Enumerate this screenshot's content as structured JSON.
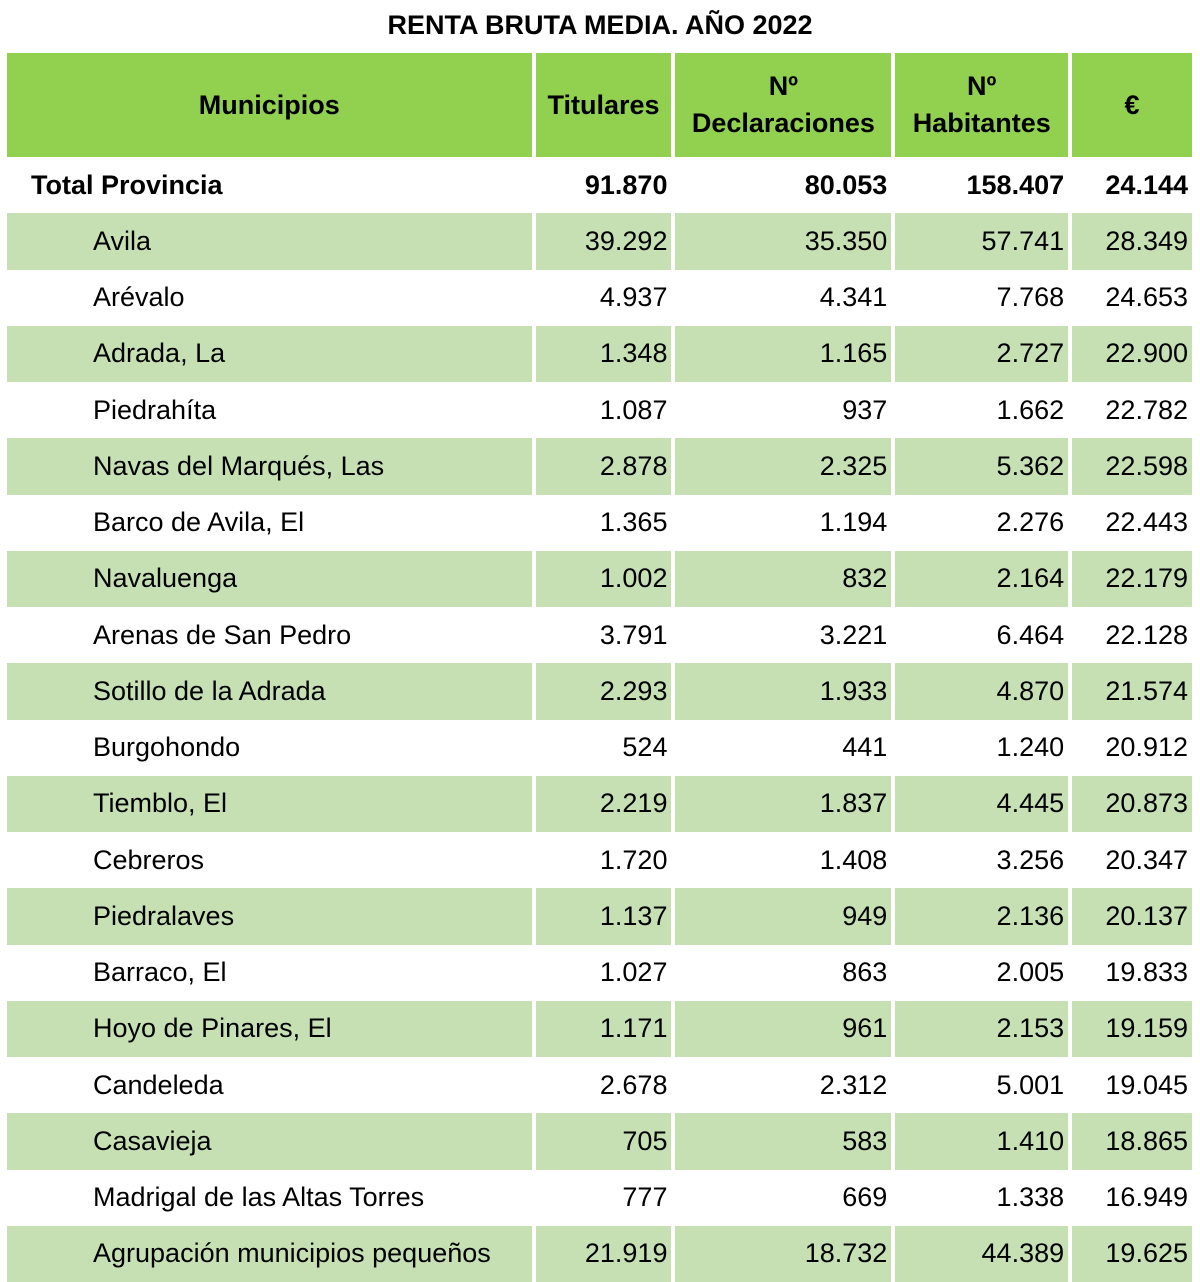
{
  "title": "RENTA BRUTA MEDIA. AÑO 2022",
  "columns": [
    "Municipios",
    "Titulares",
    "Nº\nDeclaraciones",
    "Nº\nHabitantes",
    "€"
  ],
  "total": {
    "name": "Total Provincia",
    "titulares": "91.870",
    "declaraciones": "80.053",
    "habitantes": "158.407",
    "renta": "24.144"
  },
  "rows": [
    [
      "Avila",
      "39.292",
      "35.350",
      "57.741",
      "28.349"
    ],
    [
      "Arévalo",
      "4.937",
      "4.341",
      "7.768",
      "24.653"
    ],
    [
      "Adrada, La",
      "1.348",
      "1.165",
      "2.727",
      "22.900"
    ],
    [
      "Piedrahíta",
      "1.087",
      "937",
      "1.662",
      "22.782"
    ],
    [
      "Navas del Marqués, Las",
      "2.878",
      "2.325",
      "5.362",
      "22.598"
    ],
    [
      "Barco de Avila, El",
      "1.365",
      "1.194",
      "2.276",
      "22.443"
    ],
    [
      "Navaluenga",
      "1.002",
      "832",
      "2.164",
      "22.179"
    ],
    [
      "Arenas de San Pedro",
      "3.791",
      "3.221",
      "6.464",
      "22.128"
    ],
    [
      "Sotillo de la Adrada",
      "2.293",
      "1.933",
      "4.870",
      "21.574"
    ],
    [
      "Burgohondo",
      "524",
      "441",
      "1.240",
      "20.912"
    ],
    [
      "Tiemblo, El",
      "2.219",
      "1.837",
      "4.445",
      "20.873"
    ],
    [
      "Cebreros",
      "1.720",
      "1.408",
      "3.256",
      "20.347"
    ],
    [
      "Piedralaves",
      "1.137",
      "949",
      "2.136",
      "20.137"
    ],
    [
      "Barraco, El",
      "1.027",
      "863",
      "2.005",
      "19.833"
    ],
    [
      "Hoyo de Pinares, El",
      "1.171",
      "961",
      "2.153",
      "19.159"
    ],
    [
      "Candeleda",
      "2.678",
      "2.312",
      "5.001",
      "19.045"
    ],
    [
      "Casavieja",
      "705",
      "583",
      "1.410",
      "18.865"
    ],
    [
      "Madrigal de las Altas Torres",
      "777",
      "669",
      "1.338",
      "16.949"
    ],
    [
      "Agrupación municipios pequeños",
      "21.919",
      "18.732",
      "44.389",
      "19.625"
    ]
  ],
  "colors": {
    "header": "#92d050",
    "band": "#c6e0b4"
  }
}
